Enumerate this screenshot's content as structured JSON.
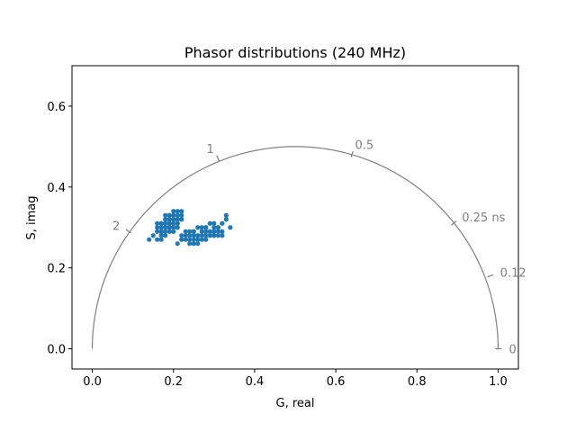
{
  "chart_data": {
    "type": "scatter",
    "title": "Phasor distributions (240 MHz)",
    "xlabel": "G, real",
    "ylabel": "S, imag",
    "xlim": [
      -0.05,
      1.05
    ],
    "ylim": [
      -0.05,
      0.7
    ],
    "xticks": [
      0.0,
      0.2,
      0.4,
      0.6,
      0.8,
      1.0
    ],
    "xtick_labels": [
      "0.0",
      "0.2",
      "0.4",
      "0.6",
      "0.8",
      "1.0"
    ],
    "yticks": [
      0.0,
      0.2,
      0.4,
      0.6
    ],
    "ytick_labels": [
      "0.0",
      "0.2",
      "0.4",
      "0.6"
    ],
    "grid": false,
    "marker_color": "#1f77b4",
    "universal_circle": {
      "color": "#808080",
      "labels": [
        {
          "text": "0",
          "g": 1.0,
          "s": 0.0
        },
        {
          "text": "0.12",
          "g": 0.98,
          "s": 0.18
        },
        {
          "text": "0.25 ns",
          "g": 0.89,
          "s": 0.31
        },
        {
          "text": "0.5",
          "g": 0.64,
          "s": 0.48
        },
        {
          "text": "1",
          "g": 0.31,
          "s": 0.47
        },
        {
          "text": "2",
          "g": 0.09,
          "s": 0.29
        }
      ]
    },
    "series": [
      {
        "x": [
          0.15,
          0.16,
          0.17,
          0.17,
          0.18,
          0.18,
          0.19,
          0.19,
          0.2,
          0.2,
          0.21,
          0.21,
          0.22,
          0.17,
          0.18,
          0.19,
          0.2,
          0.16,
          0.17,
          0.18,
          0.19,
          0.2,
          0.21,
          0.18,
          0.19,
          0.2,
          0.17,
          0.18,
          0.16,
          0.19,
          0.2,
          0.21,
          0.18,
          0.19,
          0.17,
          0.2,
          0.19,
          0.18,
          0.21,
          0.2,
          0.22,
          0.14,
          0.16,
          0.17,
          0.18,
          0.19,
          0.2,
          0.21,
          0.19,
          0.18,
          0.17,
          0.2,
          0.21,
          0.22,
          0.18
        ],
        "y": [
          0.28,
          0.29,
          0.3,
          0.29,
          0.3,
          0.31,
          0.31,
          0.32,
          0.32,
          0.33,
          0.33,
          0.34,
          0.34,
          0.28,
          0.29,
          0.3,
          0.31,
          0.3,
          0.31,
          0.32,
          0.33,
          0.3,
          0.32,
          0.28,
          0.29,
          0.3,
          0.27,
          0.31,
          0.31,
          0.31,
          0.29,
          0.31,
          0.33,
          0.32,
          0.28,
          0.3,
          0.3,
          0.3,
          0.3,
          0.32,
          0.32,
          0.27,
          0.27,
          0.29,
          0.29,
          0.3,
          0.3,
          0.31,
          0.33,
          0.32,
          0.31,
          0.34,
          0.32,
          0.33,
          0.3
        ]
      },
      {
        "x": [
          0.21,
          0.22,
          0.23,
          0.24,
          0.25,
          0.26,
          0.27,
          0.28,
          0.29,
          0.3,
          0.31,
          0.32,
          0.33,
          0.22,
          0.23,
          0.24,
          0.25,
          0.26,
          0.27,
          0.28,
          0.29,
          0.3,
          0.31,
          0.24,
          0.25,
          0.26,
          0.27,
          0.28,
          0.29,
          0.3,
          0.31,
          0.23,
          0.24,
          0.25,
          0.26,
          0.27,
          0.28,
          0.29,
          0.3,
          0.34,
          0.32,
          0.33,
          0.25,
          0.26,
          0.27,
          0.28,
          0.29,
          0.3,
          0.22,
          0.31,
          0.24,
          0.26,
          0.28,
          0.3,
          0.32
        ],
        "y": [
          0.26,
          0.27,
          0.27,
          0.28,
          0.28,
          0.28,
          0.29,
          0.29,
          0.29,
          0.3,
          0.3,
          0.31,
          0.32,
          0.28,
          0.28,
          0.29,
          0.29,
          0.3,
          0.3,
          0.3,
          0.31,
          0.31,
          0.3,
          0.26,
          0.27,
          0.27,
          0.28,
          0.28,
          0.28,
          0.29,
          0.29,
          0.29,
          0.27,
          0.26,
          0.26,
          0.27,
          0.28,
          0.28,
          0.28,
          0.3,
          0.29,
          0.33,
          0.29,
          0.28,
          0.29,
          0.27,
          0.29,
          0.28,
          0.27,
          0.28,
          0.28,
          0.27,
          0.3,
          0.29,
          0.28
        ]
      }
    ]
  }
}
